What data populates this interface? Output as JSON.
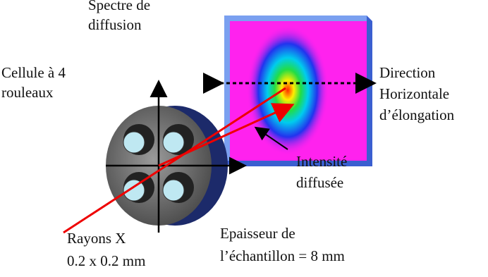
{
  "labels": {
    "spectre": [
      "Spectre de",
      "diffusion"
    ],
    "cellule": [
      "Cellule à 4",
      "rouleaux"
    ],
    "direction": [
      "Direction",
      "Horizontale",
      "d’élongation"
    ],
    "intensite": [
      "Intensité",
      "diffusée"
    ],
    "rayons": [
      "Rayons X",
      "0.2 x 0.2 mm"
    ],
    "epaisseur": [
      "Epaisseur de",
      "l’échantillon = 8 mm"
    ]
  }
}
